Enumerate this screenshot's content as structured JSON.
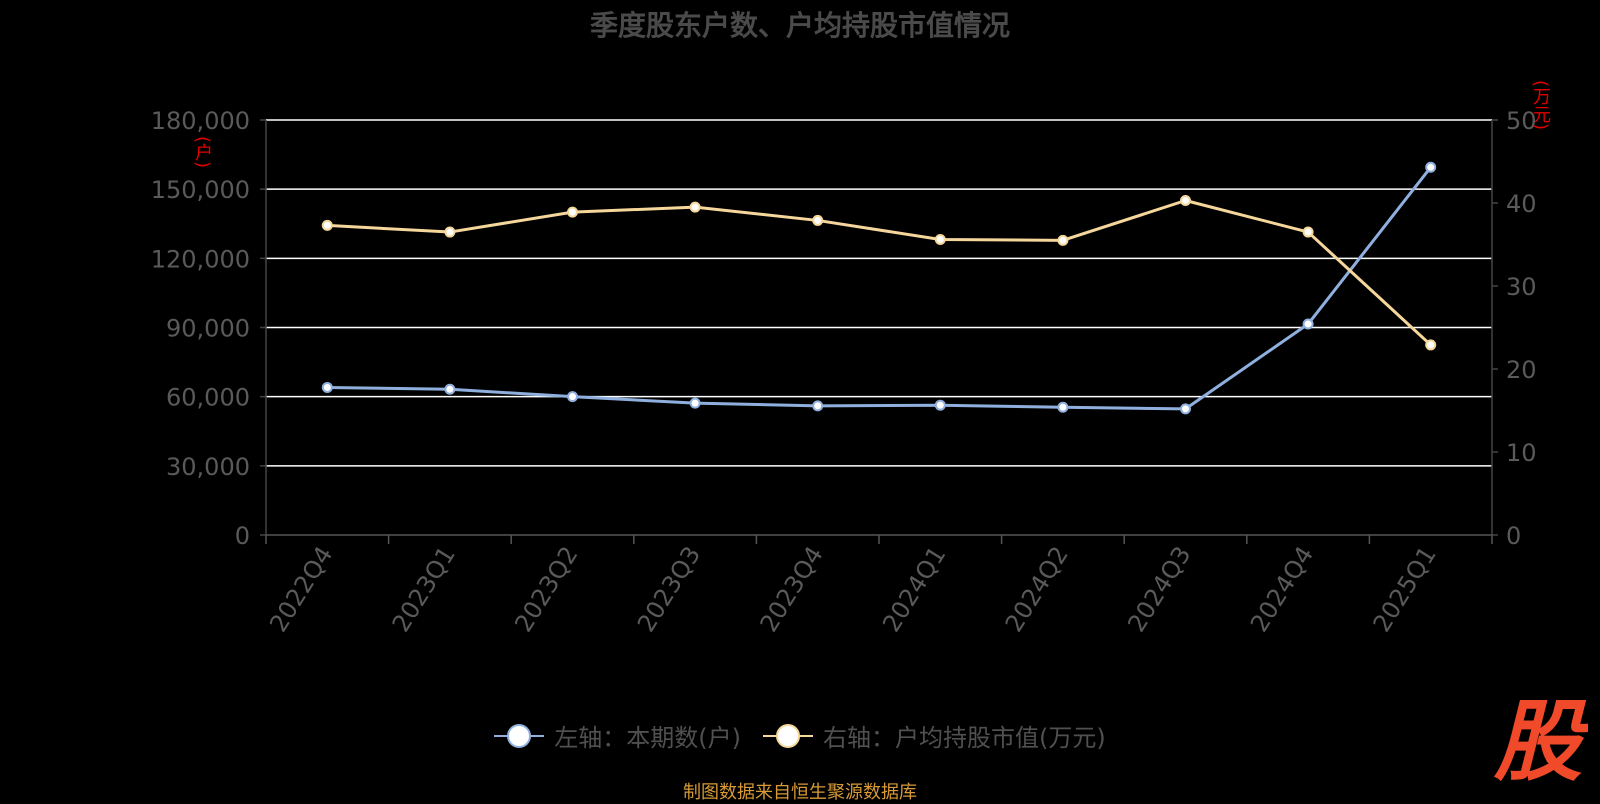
{
  "title": "季度股东户数、户均持股市值情况",
  "left_unit": "(户)",
  "right_unit": "(万元)",
  "legend": {
    "left": "左轴：本期数(户)",
    "right": "右轴：户均持股市值(万元)"
  },
  "source": "制图数据来自恒生聚源数据库",
  "watermark_char": "股",
  "colors": {
    "background": "#000000",
    "grid": "#ffffff",
    "axis_text": "#5a5a5a",
    "series_left": "#8fb0de",
    "series_right": "#f5d79b",
    "unit_text": "#e00000",
    "source_text": "#d79a36",
    "watermark": "#f04a2a"
  },
  "chart_data": {
    "type": "line",
    "title": "季度股东户数、户均持股市值情况",
    "categories": [
      "2022Q4",
      "2023Q1",
      "2023Q2",
      "2023Q3",
      "2023Q4",
      "2024Q1",
      "2024Q2",
      "2024Q3",
      "2024Q4",
      "2025Q1"
    ],
    "y_left": {
      "label": "(户)",
      "range": [
        0,
        180000
      ],
      "ticks": [
        0,
        30000,
        60000,
        90000,
        120000,
        150000,
        180000
      ],
      "tick_labels": [
        "0",
        "30,000",
        "60,000",
        "90,000",
        "120,000",
        "150,000",
        "180,000"
      ]
    },
    "y_right": {
      "label": "(万元)",
      "range": [
        0,
        50
      ],
      "ticks": [
        0,
        10,
        20,
        30,
        40,
        50
      ],
      "tick_labels": [
        "0",
        "10",
        "20",
        "30",
        "40",
        "50"
      ]
    },
    "grid": true,
    "legend_position": "bottom-center",
    "series": [
      {
        "name": "左轴：本期数(户)",
        "axis": "left",
        "values": [
          64000,
          63200,
          60000,
          57200,
          56000,
          56300,
          55400,
          54700,
          91500,
          159500
        ]
      },
      {
        "name": "右轴：户均持股市值(万元)",
        "axis": "right",
        "values": [
          37.3,
          36.5,
          38.9,
          39.5,
          37.9,
          35.6,
          35.5,
          40.3,
          36.5,
          22.9
        ]
      }
    ]
  }
}
